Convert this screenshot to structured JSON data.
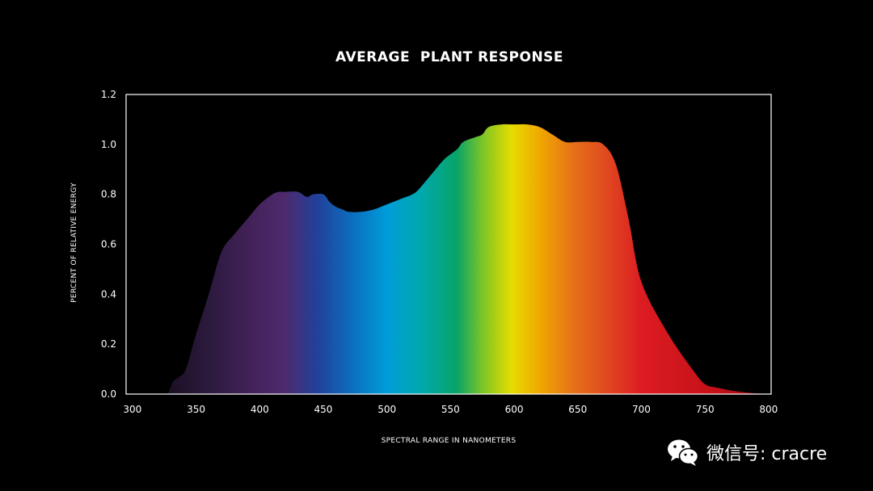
{
  "chart_data": {
    "type": "area",
    "title": "AVERAGE  PLANT RESPONSE",
    "xlabel": "SPECTRAL RANGE IN NANOMETERS",
    "ylabel": "PERCENT OF RELATIVE ENERGY",
    "xlim": [
      295,
      802
    ],
    "ylim": [
      0,
      1.2
    ],
    "x_ticks": [
      300,
      350,
      400,
      450,
      500,
      550,
      600,
      650,
      700,
      750,
      800
    ],
    "y_ticks": [
      0.0,
      0.2,
      0.4,
      0.6,
      0.8,
      1.0,
      1.2
    ],
    "y_tick_labels": [
      "0.0",
      "0.2",
      "0.4",
      "0.6",
      "0.8",
      "1.0",
      "1.2"
    ],
    "grid": false,
    "fill": "visible spectrum gradient",
    "gradient_stops": [
      {
        "wavelength": 330,
        "color": "#1c1024"
      },
      {
        "wavelength": 360,
        "color": "#2c1a3e"
      },
      {
        "wavelength": 395,
        "color": "#44225a"
      },
      {
        "wavelength": 420,
        "color": "#4e2a6e"
      },
      {
        "wavelength": 445,
        "color": "#22409a"
      },
      {
        "wavelength": 475,
        "color": "#0a72c2"
      },
      {
        "wavelength": 500,
        "color": "#009cd8"
      },
      {
        "wavelength": 525,
        "color": "#00a8b0"
      },
      {
        "wavelength": 555,
        "color": "#08a468"
      },
      {
        "wavelength": 575,
        "color": "#7cc428"
      },
      {
        "wavelength": 598,
        "color": "#e6dc00"
      },
      {
        "wavelength": 620,
        "color": "#f0a800"
      },
      {
        "wavelength": 645,
        "color": "#e67418"
      },
      {
        "wavelength": 672,
        "color": "#e04a20"
      },
      {
        "wavelength": 700,
        "color": "#dc1c22"
      },
      {
        "wavelength": 760,
        "color": "#c41018"
      },
      {
        "wavelength": 800,
        "color": "#8a0a10"
      }
    ],
    "series": [
      {
        "x": [
          328,
          332,
          337,
          342,
          350,
          360,
          370,
          380,
          390,
          400,
          410,
          415,
          420,
          430,
          437,
          442,
          450,
          455,
          460,
          465,
          470,
          480,
          490,
          500,
          510,
          520,
          525,
          535,
          545,
          555,
          560,
          570,
          575,
          580,
          590,
          600,
          610,
          620,
          630,
          640,
          650,
          660,
          670,
          680,
          690,
          700,
          720,
          740,
          750,
          760,
          770,
          780,
          790,
          800
        ],
        "y": [
          0.0,
          0.05,
          0.07,
          0.1,
          0.24,
          0.4,
          0.57,
          0.64,
          0.7,
          0.76,
          0.8,
          0.81,
          0.81,
          0.81,
          0.79,
          0.8,
          0.8,
          0.77,
          0.75,
          0.74,
          0.73,
          0.73,
          0.74,
          0.76,
          0.78,
          0.8,
          0.82,
          0.88,
          0.94,
          0.98,
          1.01,
          1.03,
          1.04,
          1.07,
          1.08,
          1.08,
          1.08,
          1.07,
          1.04,
          1.01,
          1.01,
          1.01,
          1.0,
          0.92,
          0.7,
          0.45,
          0.25,
          0.1,
          0.04,
          0.025,
          0.015,
          0.008,
          0.003,
          0.0
        ]
      }
    ]
  },
  "watermark": {
    "text": "微信号: cracre",
    "icon": "wechat-icon"
  }
}
